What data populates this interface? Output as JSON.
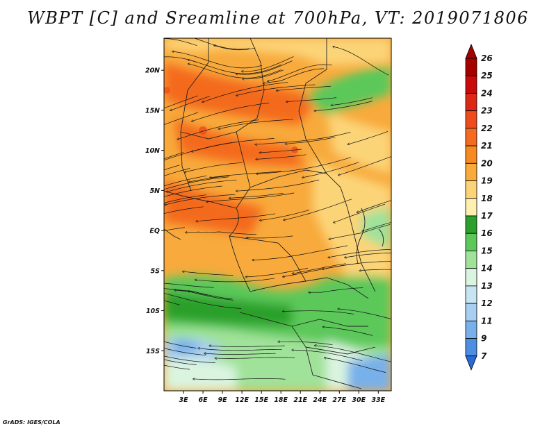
{
  "title": "WBPT [C] and Sreamline at 700hPa, VT: 2019071806",
  "credit": "GrADS: IGES/COLA",
  "map": {
    "lon_range": [
      0,
      35
    ],
    "lat_range": [
      -20,
      24
    ],
    "lat_ticks": [
      {
        "value": 20,
        "label": "20N"
      },
      {
        "value": 15,
        "label": "15N"
      },
      {
        "value": 10,
        "label": "10N"
      },
      {
        "value": 5,
        "label": "5N"
      },
      {
        "value": 0,
        "label": "EQ"
      },
      {
        "value": -5,
        "label": "5S"
      },
      {
        "value": -10,
        "label": "10S"
      },
      {
        "value": -15,
        "label": "15S"
      }
    ],
    "lon_ticks": [
      {
        "value": 3,
        "label": "3E"
      },
      {
        "value": 6,
        "label": "6E"
      },
      {
        "value": 9,
        "label": "9E"
      },
      {
        "value": 12,
        "label": "12E"
      },
      {
        "value": 15,
        "label": "15E"
      },
      {
        "value": 18,
        "label": "18E"
      },
      {
        "value": 21,
        "label": "21E"
      },
      {
        "value": 24,
        "label": "24E"
      },
      {
        "value": 27,
        "label": "27E"
      },
      {
        "value": 30,
        "label": "30E"
      },
      {
        "value": 33,
        "label": "33E"
      }
    ],
    "field_description_regions": [
      {
        "name": "north-band",
        "lat": [
          10,
          24
        ],
        "dominant_wbpt": 21
      },
      {
        "name": "equatorial-band",
        "lat": [
          -5,
          10
        ],
        "dominant_wbpt": 20
      },
      {
        "name": "southern-band",
        "lat": [
          -20,
          -5
        ],
        "dominant_wbpt": 17
      }
    ]
  },
  "colorbar": {
    "levels": [
      "26",
      "25",
      "24",
      "23",
      "22",
      "21",
      "20",
      "19",
      "18",
      "17",
      "16",
      "15",
      "14",
      "13",
      "12",
      "11",
      "9",
      "7"
    ],
    "colors": [
      "#a50000",
      "#c80a0a",
      "#dc2814",
      "#ee4c1c",
      "#f46a1e",
      "#f68a20",
      "#f8aa3c",
      "#fcd478",
      "#fdf0b0",
      "#2ca02c",
      "#5cc85a",
      "#a0e29a",
      "#daf4e0",
      "#c8e4f4",
      "#a8cff0",
      "#78b0ea",
      "#4c8ee2",
      "#2a6ad6"
    ]
  }
}
